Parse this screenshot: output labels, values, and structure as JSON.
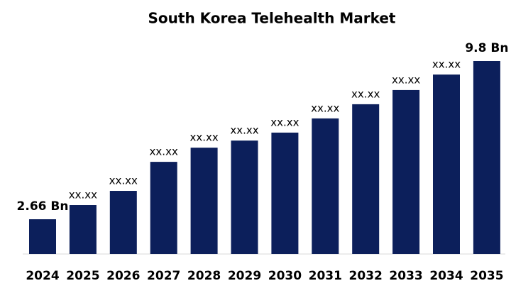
{
  "chart_data": {
    "type": "bar",
    "title": "South Korea Telehealth Market",
    "categories": [
      "2024",
      "2025",
      "2026",
      "2027",
      "2028",
      "2029",
      "2030",
      "2031",
      "2032",
      "2033",
      "2034",
      "2035"
    ],
    "values": [
      2.66,
      3.3,
      3.94,
      5.25,
      5.89,
      6.21,
      6.57,
      7.21,
      7.85,
      8.49,
      9.19,
      9.8
    ],
    "value_labels": [
      "2.66 Bn",
      "xx.xx",
      "xx.xx",
      "xx.xx",
      "xx.xx",
      "xx.xx",
      "xx.xx",
      "xx.xx",
      "xx.xx",
      "xx.xx",
      "xx.xx",
      "9.8 Bn"
    ],
    "color": "#0c1f5b"
  }
}
